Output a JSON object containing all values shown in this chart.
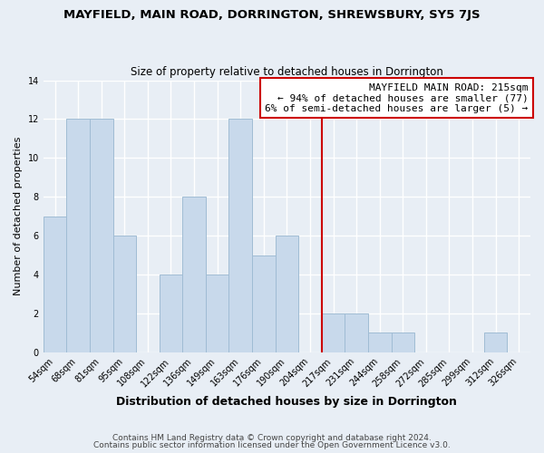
{
  "title": "MAYFIELD, MAIN ROAD, DORRINGTON, SHREWSBURY, SY5 7JS",
  "subtitle": "Size of property relative to detached houses in Dorrington",
  "xlabel": "Distribution of detached houses by size in Dorrington",
  "ylabel": "Number of detached properties",
  "bar_labels": [
    "54sqm",
    "68sqm",
    "81sqm",
    "95sqm",
    "108sqm",
    "122sqm",
    "136sqm",
    "149sqm",
    "163sqm",
    "176sqm",
    "190sqm",
    "204sqm",
    "217sqm",
    "231sqm",
    "244sqm",
    "258sqm",
    "272sqm",
    "285sqm",
    "299sqm",
    "312sqm",
    "326sqm"
  ],
  "bar_heights": [
    7,
    12,
    12,
    6,
    0,
    4,
    8,
    4,
    12,
    5,
    6,
    0,
    2,
    2,
    1,
    1,
    0,
    0,
    0,
    1,
    0
  ],
  "bar_color": "#c8d9eb",
  "bar_edge_color": "#a0bcd4",
  "background_color": "#e8eef5",
  "grid_color": "#ffffff",
  "red_line_x": 11.5,
  "annotation_title": "MAYFIELD MAIN ROAD: 215sqm",
  "annotation_line1": "← 94% of detached houses are smaller (77)",
  "annotation_line2": "6% of semi-detached houses are larger (5) →",
  "annotation_box_facecolor": "#ffffff",
  "annotation_box_edgecolor": "#cc0000",
  "ylim": [
    0,
    14
  ],
  "yticks": [
    0,
    2,
    4,
    6,
    8,
    10,
    12,
    14
  ],
  "footer_line1": "Contains HM Land Registry data © Crown copyright and database right 2024.",
  "footer_line2": "Contains public sector information licensed under the Open Government Licence v3.0.",
  "title_fontsize": 9.5,
  "subtitle_fontsize": 8.5,
  "xlabel_fontsize": 9,
  "ylabel_fontsize": 8,
  "tick_fontsize": 7,
  "annotation_fontsize": 8,
  "footer_fontsize": 6.5
}
